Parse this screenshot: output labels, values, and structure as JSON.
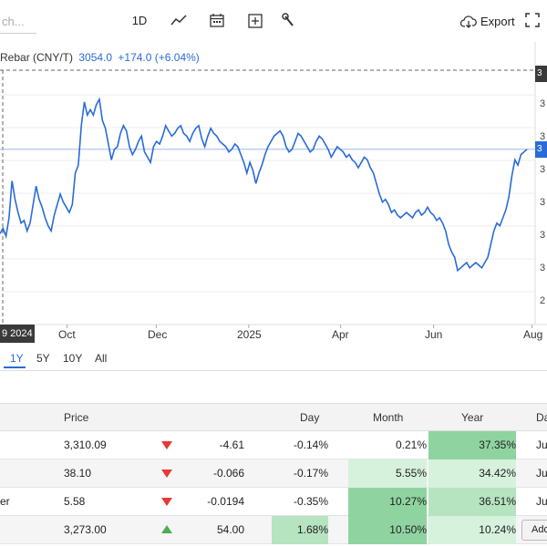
{
  "toolbar": {
    "search_placeholder": "ch...",
    "interval_label": "1D",
    "export_label": "Export"
  },
  "legend": {
    "name": "Rebar (CNY/T)",
    "price": "3054.0",
    "change": "+174.0 (+6.04%)"
  },
  "crosshair_date_label": "9 2024",
  "y_axis_tags": [
    "3",
    "3",
    "3",
    "3",
    "3",
    "3",
    "2"
  ],
  "current_price_tag": "3",
  "top_price_tag": "3",
  "x_axis_labels": [
    "Oct",
    "Dec",
    "2025",
    "Apr",
    "Jun",
    "Aug"
  ],
  "ranges": [
    "1Y",
    "5Y",
    "10Y",
    "All"
  ],
  "active_range": "1Y",
  "colors": {
    "line": "#2a6bd8",
    "down": "#e53935",
    "up": "#4caf50",
    "positive_strong": "#8fd4a0",
    "positive_medium": "#b6e3c0",
    "positive_light": "#d6f1dc"
  },
  "table": {
    "headers": [
      "Price",
      "Day",
      "Month",
      "Year",
      "Da"
    ],
    "rows": [
      {
        "name": "",
        "price": "3,310.09",
        "dir": "down",
        "change": "-4.61",
        "day": "-0.14%",
        "month": "0.21%",
        "year": "37.35%",
        "date": "Jul"
      },
      {
        "name": "",
        "price": "38.10",
        "dir": "down",
        "change": "-0.066",
        "day": "-0.17%",
        "month": "5.55%",
        "year": "34.42%",
        "date": "Jul"
      },
      {
        "name": "er",
        "price": "5.58",
        "dir": "down",
        "change": "-0.0194",
        "day": "-0.35%",
        "month": "10.27%",
        "year": "36.51%",
        "date": "Jul"
      },
      {
        "name": "",
        "price": "3,273.00",
        "dir": "up",
        "change": "54.00",
        "day": "1.68%",
        "month": "10.50%",
        "year": "10.24%",
        "date": "Add"
      }
    ]
  },
  "chart_data": {
    "type": "line",
    "title": "",
    "series": [
      {
        "name": "Rebar (CNY/T)",
        "values": [
          3190,
          3210,
          3180,
          3250,
          3390,
          3320,
          3270,
          3230,
          3240,
          3200,
          3230,
          3300,
          3370,
          3320,
          3290,
          3250,
          3220,
          3200,
          3260,
          3300,
          3340,
          3310,
          3290,
          3270,
          3300,
          3420,
          3450,
          3600,
          3690,
          3640,
          3660,
          3640,
          3680,
          3700,
          3620,
          3590,
          3530,
          3470,
          3510,
          3520,
          3570,
          3600,
          3580,
          3520,
          3490,
          3510,
          3540,
          3560,
          3500,
          3480,
          3460,
          3520,
          3540,
          3530,
          3560,
          3600,
          3580,
          3560,
          3570,
          3590,
          3600,
          3570,
          3560,
          3540,
          3570,
          3590,
          3600,
          3550,
          3520,
          3560,
          3590,
          3570,
          3560,
          3540,
          3530,
          3520,
          3500,
          3510,
          3530,
          3520,
          3490,
          3460,
          3420,
          3460,
          3430,
          3380,
          3420,
          3450,
          3490,
          3520,
          3540,
          3560,
          3570,
          3580,
          3560,
          3520,
          3500,
          3510,
          3540,
          3570,
          3560,
          3540,
          3520,
          3500,
          3510,
          3540,
          3560,
          3550,
          3530,
          3510,
          3480,
          3500,
          3520,
          3510,
          3500,
          3480,
          3490,
          3470,
          3460,
          3440,
          3460,
          3480,
          3470,
          3440,
          3420,
          3380,
          3340,
          3310,
          3320,
          3300,
          3270,
          3280,
          3260,
          3250,
          3260,
          3270,
          3260,
          3250,
          3270,
          3280,
          3260,
          3270,
          3290,
          3270,
          3260,
          3240,
          3250,
          3230,
          3200,
          3150,
          3120,
          3100,
          3050,
          3060,
          3070,
          3080,
          3060,
          3070,
          3080,
          3070,
          3060,
          3080,
          3100,
          3150,
          3200,
          3230,
          3220,
          3250,
          3280,
          3330,
          3410,
          3470,
          3450,
          3490,
          3500,
          3510
        ]
      }
    ],
    "y_axis": {
      "min": 2900,
      "max": 3800,
      "tick_labels": [
        "3",
        "3",
        "3",
        "3",
        "3",
        "3",
        "2"
      ]
    },
    "x_axis": {
      "labels": [
        "Oct",
        "Dec",
        "2025",
        "Apr",
        "Jun",
        "Aug"
      ]
    },
    "current_price_line": 3510,
    "grid": true
  }
}
